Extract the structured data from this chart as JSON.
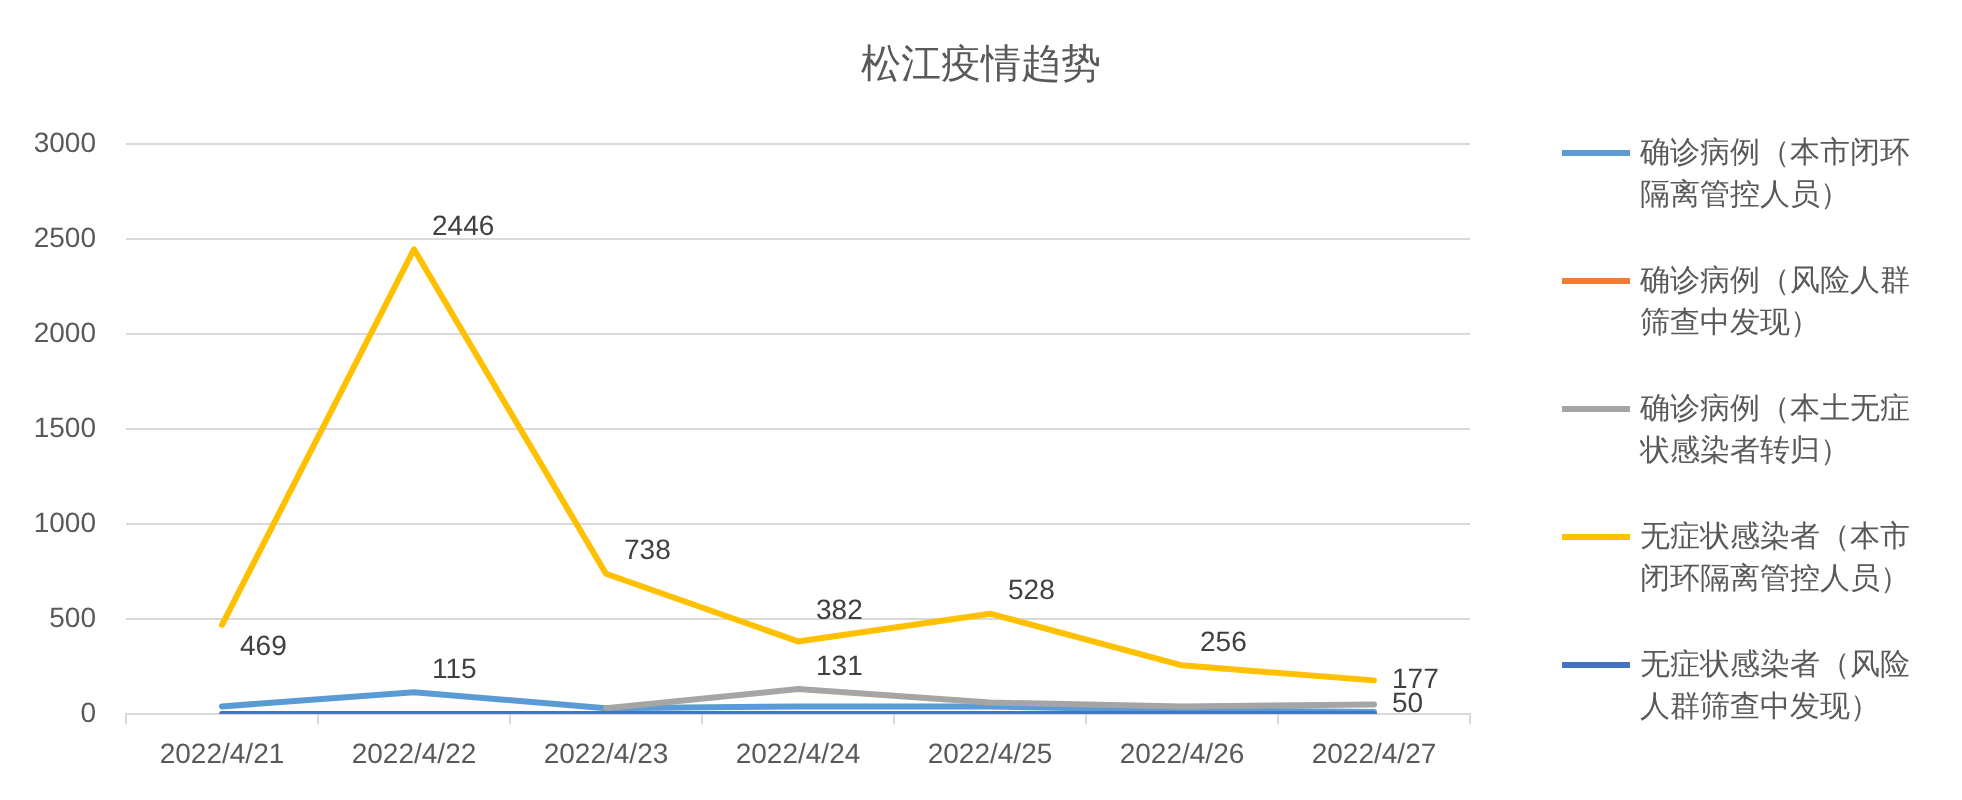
{
  "chart_data": {
    "type": "line",
    "title": "松江疫情趋势",
    "categories": [
      "2022/4/21",
      "2022/4/22",
      "2022/4/23",
      "2022/4/24",
      "2022/4/25",
      "2022/4/26",
      "2022/4/27"
    ],
    "series": [
      {
        "name": "确诊病例（本市闭环隔离管控人员）",
        "color": "#5b9bd5",
        "values": [
          40,
          115,
          30,
          40,
          40,
          20,
          10
        ],
        "value_labels": [
          null,
          "115",
          null,
          null,
          null,
          null,
          null
        ]
      },
      {
        "name": "确诊病例（风险人群筛查中发现）",
        "color": "#ed7d31",
        "values": [
          null,
          null,
          null,
          null,
          null,
          null,
          null
        ]
      },
      {
        "name": "确诊病例（本土无症状感染者转归）",
        "color": "#a5a5a5",
        "values": [
          null,
          null,
          30,
          131,
          60,
          40,
          50
        ],
        "value_labels": [
          null,
          null,
          null,
          "131",
          null,
          null,
          "50"
        ]
      },
      {
        "name": "无症状感染者（本市闭环隔离管控人员）",
        "color": "#ffc000",
        "values": [
          469,
          2446,
          738,
          382,
          528,
          256,
          177
        ],
        "value_labels": [
          "469",
          "2446",
          "738",
          "382",
          "528",
          "256",
          "177"
        ]
      },
      {
        "name": "无症状感染者（风险人群筛查中发现）",
        "color": "#4472c4",
        "values": [
          0,
          0,
          0,
          0,
          0,
          0,
          0
        ]
      }
    ],
    "ylim": [
      0,
      3000
    ],
    "yticks": [
      0,
      500,
      1000,
      1500,
      2000,
      2500,
      3000
    ],
    "grid": "y",
    "legend": "right",
    "marker": "none",
    "line_style": "solid"
  }
}
